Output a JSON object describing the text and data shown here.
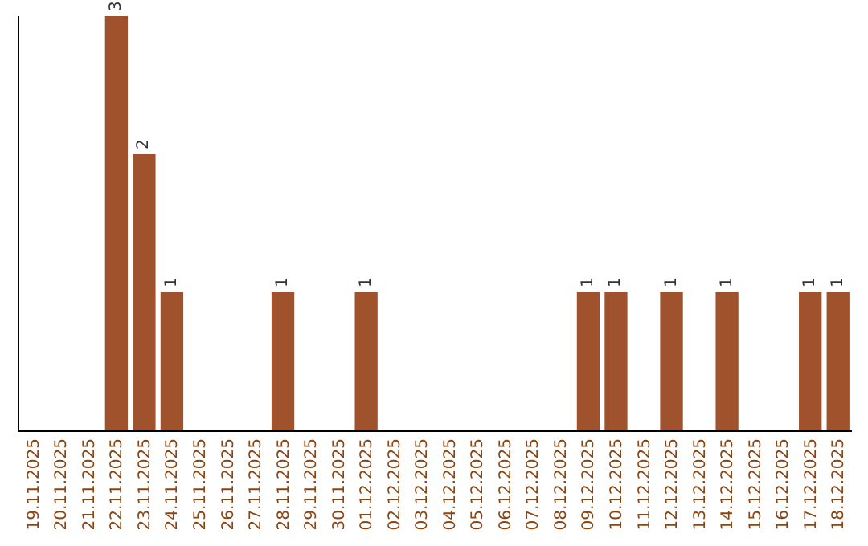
{
  "chart_data": {
    "type": "bar",
    "categories": [
      "19.11.2025",
      "20.11.2025",
      "21.11.2025",
      "22.11.2025",
      "23.11.2025",
      "24.11.2025",
      "25.11.2025",
      "26.11.2025",
      "27.11.2025",
      "28.11.2025",
      "29.11.2025",
      "30.11.2025",
      "01.12.2025",
      "02.12.2025",
      "03.12.2025",
      "04.12.2025",
      "05.12.2025",
      "06.12.2025",
      "07.12.2025",
      "08.12.2025",
      "09.12.2025",
      "10.12.2025",
      "11.12.2025",
      "12.12.2025",
      "13.12.2025",
      "14.12.2025",
      "15.12.2025",
      "16.12.2025",
      "17.12.2025",
      "18.12.2025"
    ],
    "values": [
      0,
      0,
      0,
      3,
      2,
      1,
      0,
      0,
      0,
      1,
      0,
      0,
      1,
      0,
      0,
      0,
      0,
      0,
      0,
      0,
      1,
      1,
      0,
      1,
      0,
      1,
      0,
      0,
      1,
      1
    ],
    "value_labels": [
      null,
      null,
      null,
      "3",
      "2",
      "1",
      null,
      null,
      null,
      "1",
      null,
      null,
      "1",
      null,
      null,
      null,
      null,
      null,
      null,
      null,
      "1",
      "1",
      null,
      "1",
      null,
      "1",
      null,
      null,
      "1",
      "1"
    ],
    "color": "#a0522d",
    "grid": false,
    "legend": false
  }
}
